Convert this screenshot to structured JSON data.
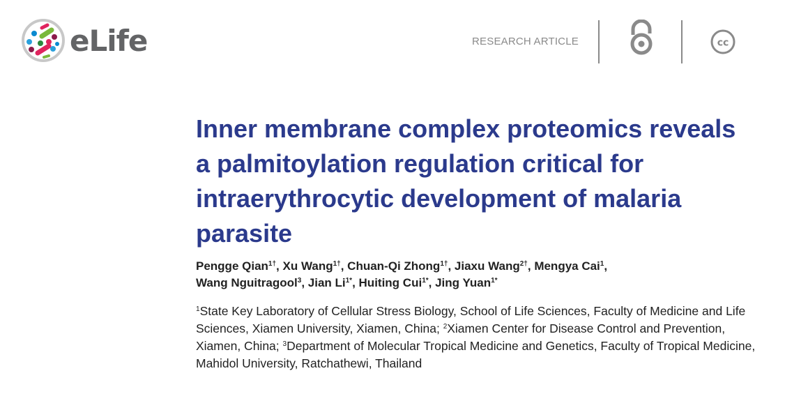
{
  "header": {
    "logo_text": "eLife",
    "article_type": "RESEARCH ARTICLE",
    "icons": [
      "open-access-icon",
      "creative-commons-icon"
    ],
    "cc_text": "cc"
  },
  "title": "Inner membrane complex proteomics reveals a palmitoylation regulation critical for intraerythrocytic development of malaria parasite",
  "authors": [
    {
      "name": "Pengge Qian",
      "sup": "1†"
    },
    {
      "name": "Xu Wang",
      "sup": "1†"
    },
    {
      "name": "Chuan-Qi Zhong",
      "sup": "1†"
    },
    {
      "name": "Jiaxu Wang",
      "sup": "2†"
    },
    {
      "name": "Mengya Cai",
      "sup": "1"
    },
    {
      "name": "Wang Nguitragool",
      "sup": "3"
    },
    {
      "name": "Jian Li",
      "sup": "1*"
    },
    {
      "name": "Huiting Cui",
      "sup": "1*"
    },
    {
      "name": "Jing Yuan",
      "sup": "1*"
    }
  ],
  "affiliations": [
    {
      "sup": "1",
      "text": "State Key Laboratory of Cellular Stress Biology, School of Life Sciences, Faculty of Medicine and Life Sciences, Xiamen University, Xiamen, China; "
    },
    {
      "sup": "2",
      "text": "Xiamen Center for Disease Control and Prevention, Xiamen, China; "
    },
    {
      "sup": "3",
      "text": "Department of Molecular Tropical Medicine and Genetics, Faculty of Tropical Medicine, Mahidol University, Ratchathewi, Thailand"
    }
  ]
}
